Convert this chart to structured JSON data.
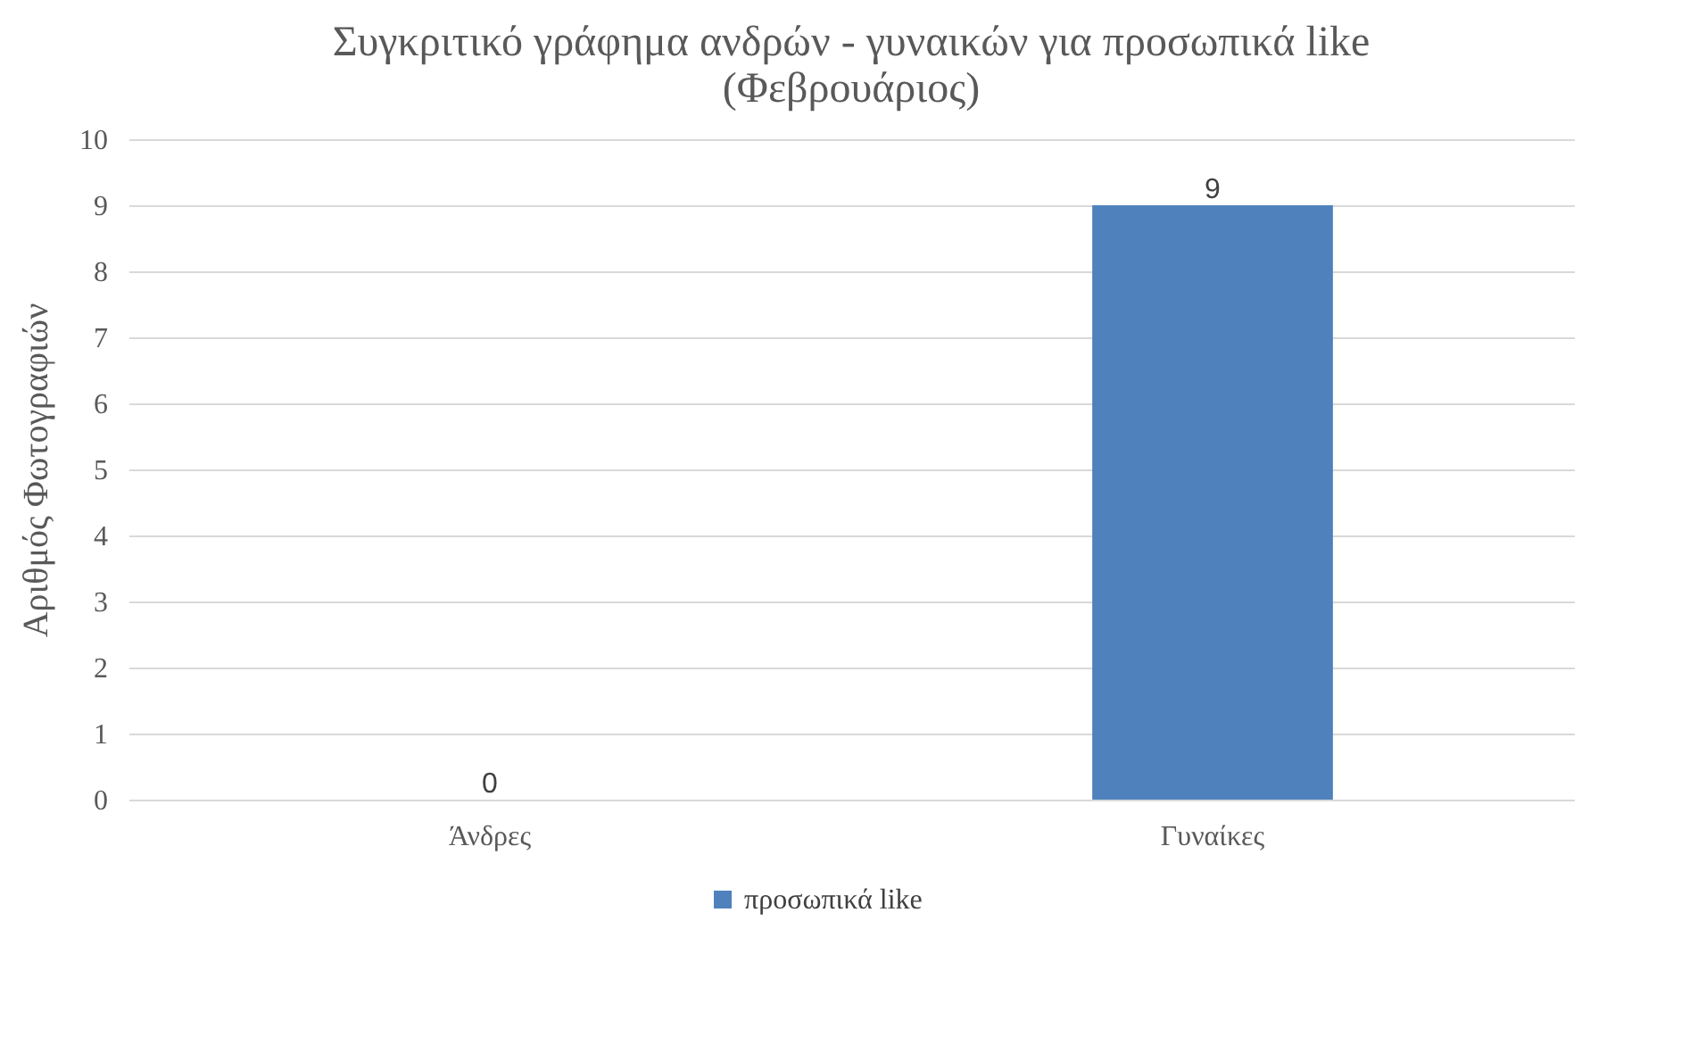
{
  "chart_data": {
    "type": "bar",
    "title": "Συγκριτικό γράφημα ανδρών - γυναικών για προσωπικά like\n(Φεβρουάριος)",
    "ylabel": "Αριθμός Φωτογραφιών",
    "categories": [
      "Άνδρες",
      "Γυναίκες"
    ],
    "series": [
      {
        "name": "προσωπικά like",
        "color": "#4f81bd",
        "values": [
          0,
          9
        ]
      }
    ],
    "ylim": [
      0,
      10
    ],
    "yticks": [
      0,
      1,
      2,
      3,
      4,
      5,
      6,
      7,
      8,
      9,
      10
    ],
    "grid": "y",
    "legend": "bottom",
    "data_labels": true
  }
}
